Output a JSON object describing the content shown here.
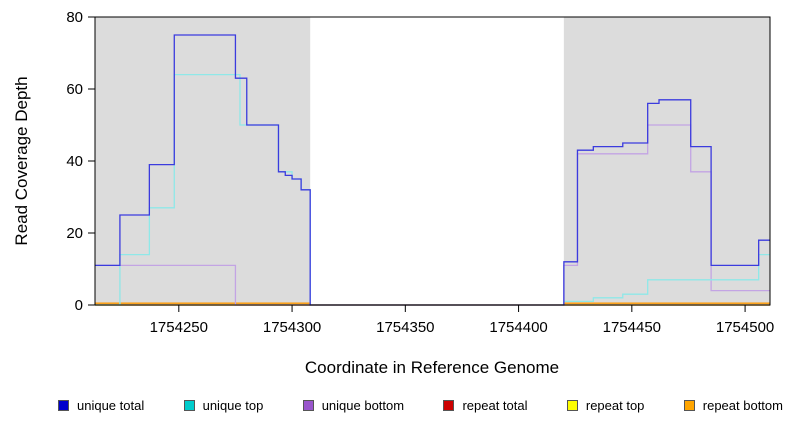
{
  "chart_data": {
    "type": "line",
    "title": "",
    "xlabel": "Coordinate in Reference Genome",
    "ylabel": "Read Coverage Depth",
    "xlim": [
      1754213,
      1754511
    ],
    "ylim": [
      0,
      80
    ],
    "x_ticks": [
      1754250,
      1754300,
      1754350,
      1754400,
      1754450,
      1754500
    ],
    "y_ticks": [
      0,
      20,
      40,
      60,
      80
    ],
    "grid": false,
    "shade_color": "#DCDCDC",
    "shaded_regions": [
      {
        "from": 1754213,
        "to": 1754308
      },
      {
        "from": 1754420,
        "to": 1754511
      }
    ],
    "series": [
      {
        "name": "repeat total",
        "color": "#CC0000",
        "points": [
          [
            1754213,
            0
          ],
          [
            1754511,
            0
          ]
        ]
      },
      {
        "name": "repeat top",
        "color": "#EEEE00",
        "points": [
          [
            1754213,
            0
          ],
          [
            1754511,
            0
          ]
        ]
      },
      {
        "name": "repeat bottom",
        "color": "#FF9900",
        "points": [
          [
            1754213,
            0.5
          ],
          [
            1754308,
            0
          ],
          [
            1754420,
            0.5
          ],
          [
            1754511,
            0.5
          ]
        ]
      },
      {
        "name": "unique bottom",
        "color": "#C3A4E4",
        "points": [
          [
            1754213,
            11
          ],
          [
            1754275,
            0
          ],
          [
            1754420,
            11
          ],
          [
            1754426,
            42
          ],
          [
            1754457,
            50
          ],
          [
            1754476,
            37
          ],
          [
            1754485,
            4
          ],
          [
            1754511,
            4
          ]
        ]
      },
      {
        "name": "unique top",
        "color": "#8FE8E8",
        "points": [
          [
            1754213,
            0
          ],
          [
            1754224,
            14
          ],
          [
            1754237,
            27
          ],
          [
            1754248,
            64
          ],
          [
            1754277,
            50
          ],
          [
            1754294,
            37
          ],
          [
            1754300,
            35
          ],
          [
            1754304,
            32
          ],
          [
            1754308,
            0
          ],
          [
            1754420,
            1
          ],
          [
            1754433,
            2
          ],
          [
            1754446,
            3
          ],
          [
            1754457,
            7
          ],
          [
            1754506,
            14
          ],
          [
            1754511,
            14
          ]
        ]
      },
      {
        "name": "unique total",
        "color": "#3B3BDE",
        "points": [
          [
            1754213,
            11
          ],
          [
            1754224,
            25
          ],
          [
            1754237,
            39
          ],
          [
            1754248,
            75
          ],
          [
            1754275,
            63
          ],
          [
            1754280,
            50
          ],
          [
            1754294,
            37
          ],
          [
            1754297,
            36
          ],
          [
            1754300,
            35
          ],
          [
            1754304,
            32
          ],
          [
            1754308,
            0
          ],
          [
            1754420,
            12
          ],
          [
            1754426,
            43
          ],
          [
            1754433,
            44
          ],
          [
            1754446,
            45
          ],
          [
            1754457,
            56
          ],
          [
            1754462,
            57
          ],
          [
            1754476,
            44
          ],
          [
            1754485,
            11
          ],
          [
            1754506,
            18
          ],
          [
            1754511,
            18
          ]
        ]
      }
    ],
    "legend": [
      {
        "label": "unique total",
        "color": "#0000CC"
      },
      {
        "label": "unique top",
        "color": "#00CCCC"
      },
      {
        "label": "unique bottom",
        "color": "#9955CC"
      },
      {
        "label": "repeat total",
        "color": "#CC0000"
      },
      {
        "label": "repeat top",
        "color": "#FFFF00"
      },
      {
        "label": "repeat bottom",
        "color": "#FFA500"
      }
    ],
    "legend_position": "bottom"
  }
}
